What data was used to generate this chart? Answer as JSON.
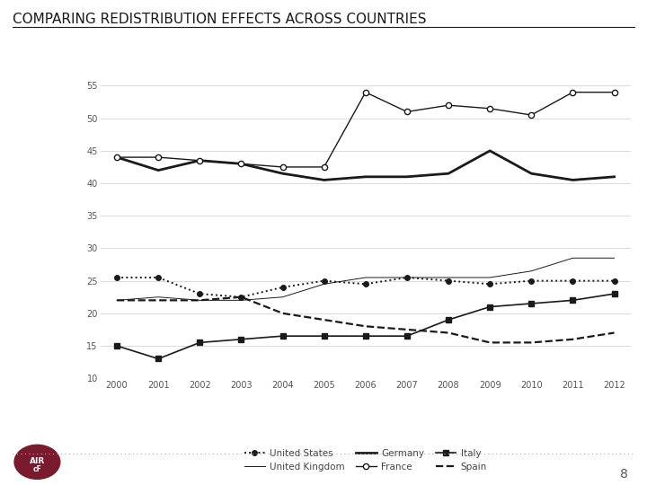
{
  "title": "COMPARING REDISTRIBUTION EFFECTS ACROSS COUNTRIES",
  "years": [
    2000,
    2001,
    2002,
    2003,
    2004,
    2005,
    2006,
    2007,
    2008,
    2009,
    2010,
    2011,
    2012
  ],
  "united_states": [
    25.5,
    25.5,
    23.0,
    22.5,
    24.0,
    25.0,
    24.5,
    25.5,
    25.0,
    24.5,
    25.0,
    25.0,
    25.0
  ],
  "united_kingdom": [
    22.0,
    22.5,
    22.0,
    22.0,
    22.5,
    24.5,
    25.5,
    25.5,
    25.5,
    25.5,
    26.5,
    28.5,
    28.5
  ],
  "germany": [
    44.0,
    42.0,
    43.5,
    43.0,
    41.5,
    40.5,
    41.0,
    41.0,
    41.5,
    45.0,
    41.5,
    40.5,
    41.0
  ],
  "france": [
    44.0,
    44.0,
    43.5,
    43.0,
    42.5,
    42.5,
    54.0,
    51.0,
    52.0,
    51.5,
    50.5,
    54.0,
    54.0
  ],
  "italy": [
    15.0,
    13.0,
    15.5,
    16.0,
    16.5,
    16.5,
    16.5,
    16.5,
    19.0,
    21.0,
    21.5,
    22.0,
    23.0
  ],
  "spain": [
    22.0,
    22.0,
    22.0,
    22.5,
    20.0,
    19.0,
    18.0,
    17.5,
    17.0,
    15.5,
    15.5,
    16.0,
    17.0
  ],
  "ylim": [
    10,
    57
  ],
  "yticks": [
    10,
    15,
    20,
    25,
    30,
    35,
    40,
    45,
    50,
    55
  ],
  "bg_color": "#ffffff",
  "line_color": "#1a1a1a",
  "grid_color": "#cccccc",
  "title_fontsize": 11,
  "tick_fontsize": 7,
  "legend_fontsize": 7.5
}
